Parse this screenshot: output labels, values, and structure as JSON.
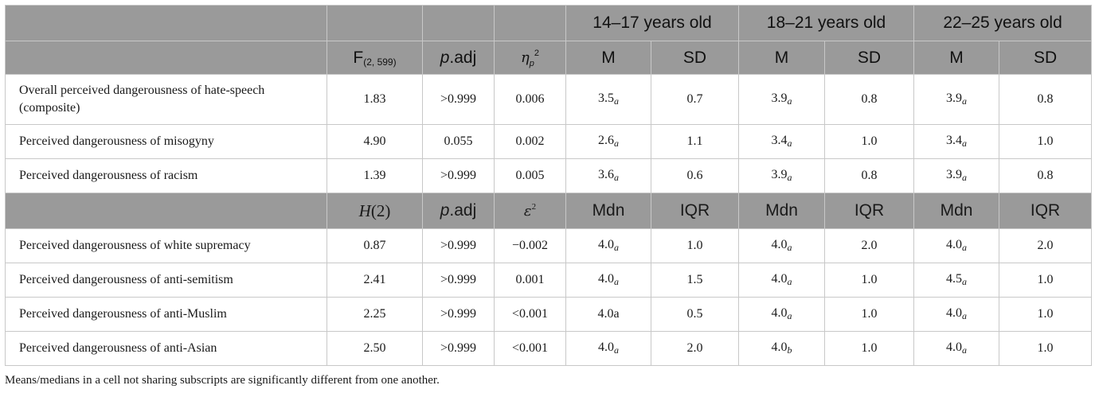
{
  "groups": [
    "14–17 years old",
    "18–21 years old",
    "22–25 years old"
  ],
  "header1": {
    "stat": "F",
    "stat_sub": "(2, 599)",
    "p": "p",
    "p_suffix": ".adj",
    "effect": "η",
    "effect_sub": "p",
    "effect_sup": "2",
    "col_a": "M",
    "col_b": "SD"
  },
  "header2": {
    "stat": "H",
    "stat_suffix": "(2)",
    "p": "p",
    "p_suffix": ".adj",
    "effect": "ε",
    "effect_sup": "2",
    "col_a": "Mdn",
    "col_b": "IQR"
  },
  "section1": [
    {
      "label": "Overall perceived dangerousness of hate-speech (composite)",
      "stat": "1.83",
      "p": ">0.999",
      "eff": "0.006",
      "g1": "3.5",
      "g1s": "a",
      "g1b": "0.7",
      "g2": "3.9",
      "g2s": "a",
      "g2b": "0.8",
      "g3": "3.9",
      "g3s": "a",
      "g3b": "0.8"
    },
    {
      "label": "Perceived dangerousness of misogyny",
      "stat": "4.90",
      "p": "0.055",
      "eff": "0.002",
      "g1": "2.6",
      "g1s": "a",
      "g1b": "1.1",
      "g2": "3.4",
      "g2s": "a",
      "g2b": "1.0",
      "g3": "3.4",
      "g3s": "a",
      "g3b": "1.0"
    },
    {
      "label": "Perceived dangerousness of racism",
      "stat": "1.39",
      "p": ">0.999",
      "eff": "0.005",
      "g1": "3.6",
      "g1s": "a",
      "g1b": "0.6",
      "g2": "3.9",
      "g2s": "a",
      "g2b": "0.8",
      "g3": "3.9",
      "g3s": "a",
      "g3b": "0.8"
    }
  ],
  "section2": [
    {
      "label": "Perceived dangerousness of white supremacy",
      "stat": "0.87",
      "p": ">0.999",
      "eff": "−0.002",
      "g1": "4.0",
      "g1s": "a",
      "g1b": "1.0",
      "g2": "4.0",
      "g2s": "a",
      "g2b": "2.0",
      "g3": "4.0",
      "g3s": "a",
      "g3b": "2.0"
    },
    {
      "label": "Perceived dangerousness of anti-semitism",
      "stat": "2.41",
      "p": ">0.999",
      "eff": "0.001",
      "g1": "4.0",
      "g1s": "a",
      "g1b": "1.5",
      "g2": "4.0",
      "g2s": "a",
      "g2b": "1.0",
      "g3": "4.5",
      "g3s": "a",
      "g3b": "1.0"
    },
    {
      "label": "Perceived dangerousness of anti-Muslim",
      "stat": "2.25",
      "p": ">0.999",
      "eff": "<0.001",
      "g1": "4.0a",
      "g1b": "0.5",
      "g2": "4.0",
      "g2s": "a",
      "g2b": "1.0",
      "g3": "4.0",
      "g3s": "a",
      "g3b": "1.0"
    },
    {
      "label": "Perceived dangerousness of anti-Asian",
      "stat": "2.50",
      "p": ">0.999",
      "eff": "<0.001",
      "g1": "4.0",
      "g1s": "a",
      "g1b": "2.0",
      "g2": "4.0",
      "g2s": "b",
      "g2b": "1.0",
      "g3": "4.0",
      "g3s": "a",
      "g3b": "1.0"
    }
  ],
  "note": "Means/medians in a cell not sharing subscripts are significantly different from one another."
}
